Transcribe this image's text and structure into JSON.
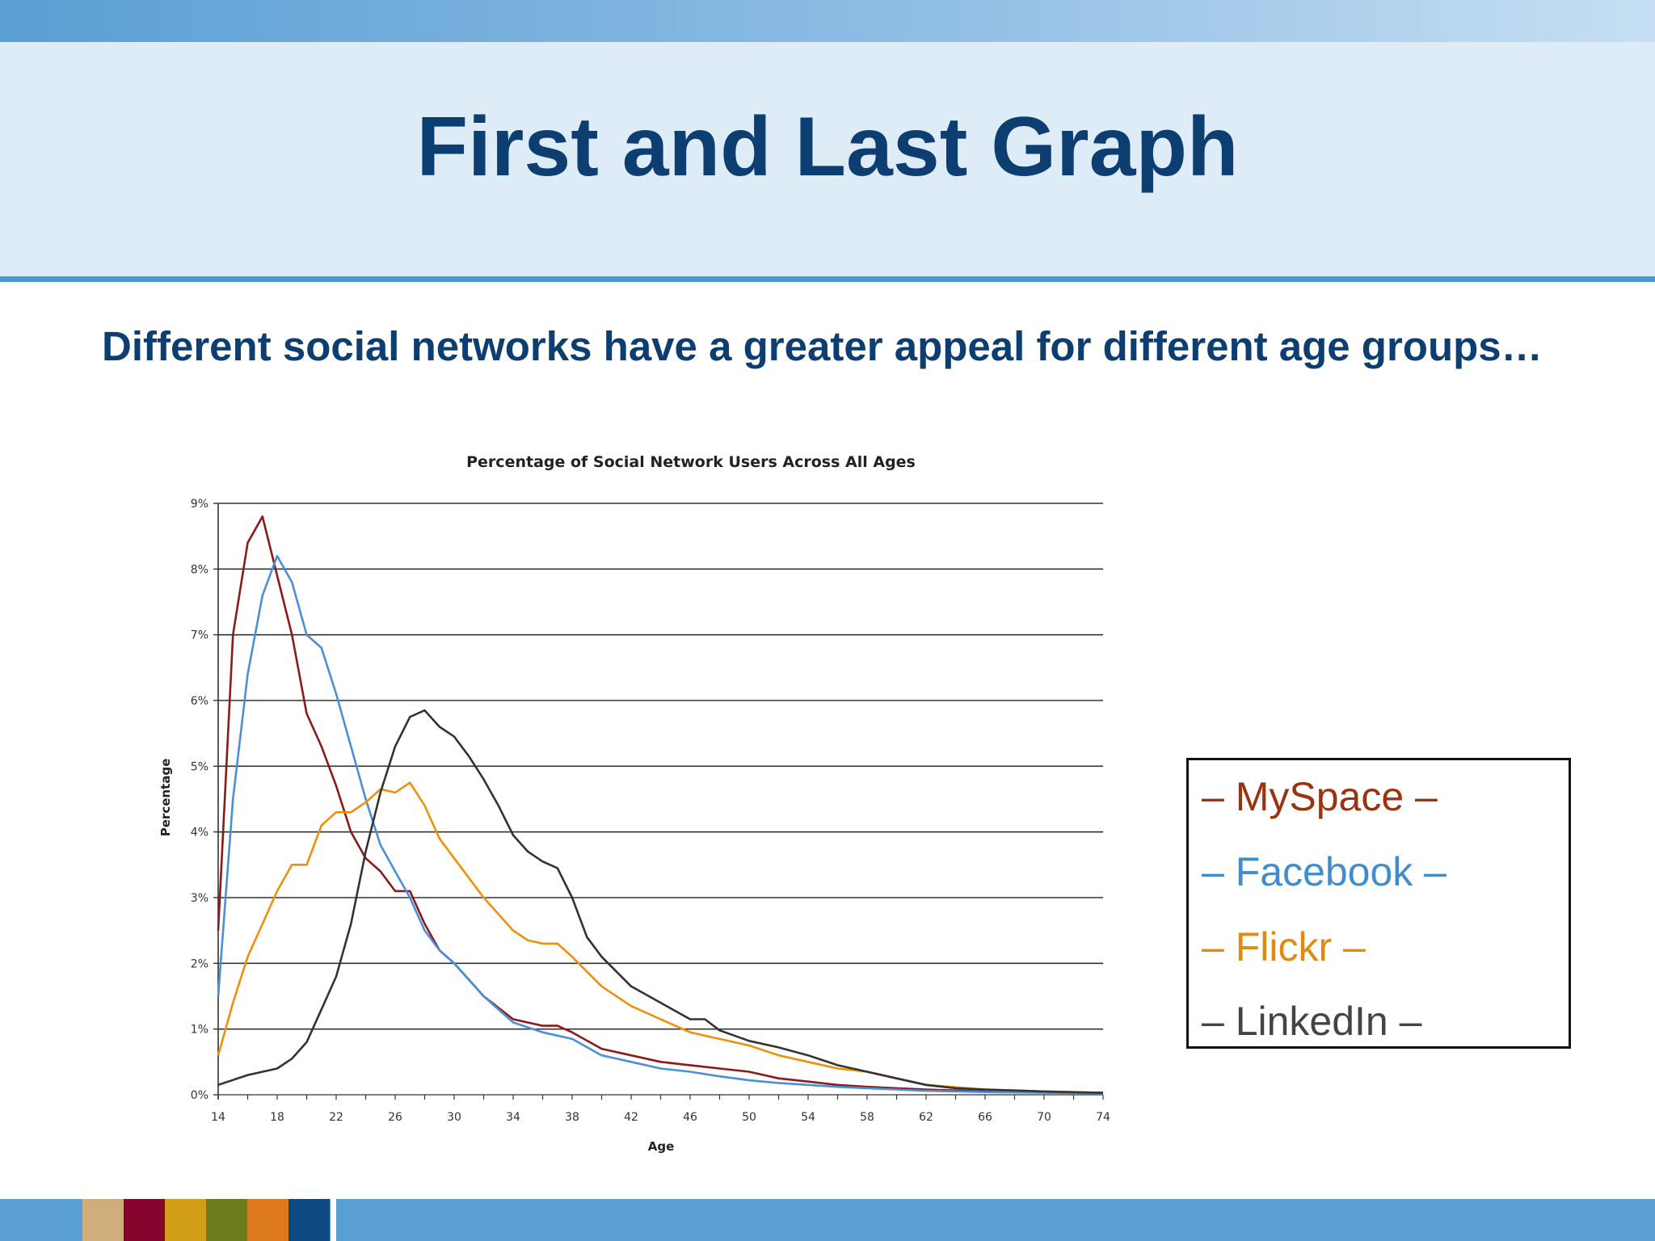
{
  "slide": {
    "title": "First and Last Graph",
    "subtitle": "Different social networks have a greater appeal for different age groups…"
  },
  "legend": [
    {
      "label": "– MySpace –",
      "color": "#9b3311"
    },
    {
      "label": "– Facebook –",
      "color": "#3f8dcc"
    },
    {
      "label": "– Flickr –",
      "color": "#e08a10"
    },
    {
      "label": "– LinkedIn –",
      "color": "#444444"
    }
  ],
  "footer_swatches": [
    "#cfae7b",
    "#86052f",
    "#d29d17",
    "#6b7b1e",
    "#dd7a1e",
    "#0f4b82"
  ],
  "chart_data": {
    "type": "line",
    "title": "Percentage of Social Network Users Across All Ages",
    "xlabel": "Age",
    "ylabel": "Percentage",
    "xlim": [
      14,
      74
    ],
    "ylim": [
      0,
      9
    ],
    "xticks": [
      14,
      18,
      22,
      26,
      30,
      34,
      38,
      42,
      46,
      50,
      54,
      58,
      62,
      66,
      70,
      74
    ],
    "yticks": [
      "0%",
      "1%",
      "2%",
      "3%",
      "4%",
      "5%",
      "6%",
      "7%",
      "8%",
      "9%"
    ],
    "grid": true,
    "series": [
      {
        "color": "#8b1a1a",
        "x": [
          14,
          15,
          16,
          17,
          18,
          19,
          20,
          21,
          22,
          23,
          24,
          25,
          26,
          27,
          28,
          29,
          30,
          32,
          34,
          36,
          37,
          38,
          40,
          42,
          44,
          46,
          48,
          50,
          52,
          54,
          56,
          58,
          60,
          62,
          66,
          70,
          74
        ],
        "y": [
          2.5,
          7.0,
          8.4,
          8.8,
          7.9,
          7.0,
          5.8,
          5.3,
          4.7,
          4.0,
          3.6,
          3.4,
          3.1,
          3.1,
          2.6,
          2.2,
          2.0,
          1.5,
          1.15,
          1.05,
          1.05,
          0.95,
          0.7,
          0.6,
          0.5,
          0.45,
          0.4,
          0.35,
          0.25,
          0.2,
          0.15,
          0.12,
          0.1,
          0.08,
          0.05,
          0.04,
          0.03
        ]
      },
      {
        "color": "#4a8fd8",
        "x": [
          14,
          15,
          16,
          17,
          18,
          19,
          20,
          21,
          22,
          23,
          24,
          25,
          26,
          27,
          28,
          29,
          30,
          32,
          34,
          36,
          37,
          38,
          40,
          42,
          44,
          46,
          48,
          50,
          52,
          54,
          56,
          58,
          60,
          62,
          66,
          70,
          74
        ],
        "y": [
          1.5,
          4.5,
          6.4,
          7.6,
          8.2,
          7.8,
          7.0,
          6.8,
          6.1,
          5.3,
          4.5,
          3.8,
          3.4,
          3.0,
          2.5,
          2.2,
          2.0,
          1.5,
          1.1,
          0.95,
          0.9,
          0.85,
          0.6,
          0.5,
          0.4,
          0.35,
          0.28,
          0.22,
          0.18,
          0.15,
          0.12,
          0.1,
          0.08,
          0.06,
          0.04,
          0.03,
          0.02
        ]
      },
      {
        "color": "#f0900a",
        "x": [
          14,
          15,
          16,
          17,
          18,
          19,
          20,
          21,
          22,
          23,
          24,
          25,
          26,
          27,
          28,
          29,
          30,
          32,
          34,
          35,
          36,
          37,
          38,
          40,
          42,
          44,
          46,
          48,
          50,
          52,
          54,
          56,
          58,
          60,
          62,
          66,
          70,
          74
        ],
        "y": [
          0.6,
          1.4,
          2.1,
          2.6,
          3.1,
          3.5,
          3.5,
          4.1,
          4.3,
          4.3,
          4.45,
          4.65,
          4.6,
          4.75,
          4.4,
          3.9,
          3.6,
          3.0,
          2.5,
          2.35,
          2.3,
          2.3,
          2.1,
          1.65,
          1.35,
          1.15,
          0.95,
          0.85,
          0.75,
          0.6,
          0.5,
          0.4,
          0.35,
          0.25,
          0.15,
          0.08,
          0.05,
          0.03
        ]
      },
      {
        "color": "#333333",
        "x": [
          14,
          16,
          18,
          19,
          20,
          21,
          22,
          23,
          24,
          25,
          26,
          27,
          28,
          29,
          30,
          31,
          32,
          33,
          34,
          35,
          36,
          37,
          38,
          39,
          40,
          42,
          44,
          46,
          47,
          48,
          50,
          52,
          54,
          56,
          58,
          60,
          62,
          64,
          66,
          70,
          74
        ],
        "y": [
          0.15,
          0.3,
          0.4,
          0.55,
          0.8,
          1.3,
          1.8,
          2.6,
          3.7,
          4.6,
          5.3,
          5.75,
          5.85,
          5.6,
          5.45,
          5.15,
          4.8,
          4.4,
          3.95,
          3.7,
          3.55,
          3.45,
          3.0,
          2.4,
          2.1,
          1.65,
          1.4,
          1.15,
          1.15,
          0.98,
          0.82,
          0.72,
          0.6,
          0.45,
          0.35,
          0.25,
          0.15,
          0.1,
          0.08,
          0.05,
          0.03
        ]
      }
    ]
  }
}
